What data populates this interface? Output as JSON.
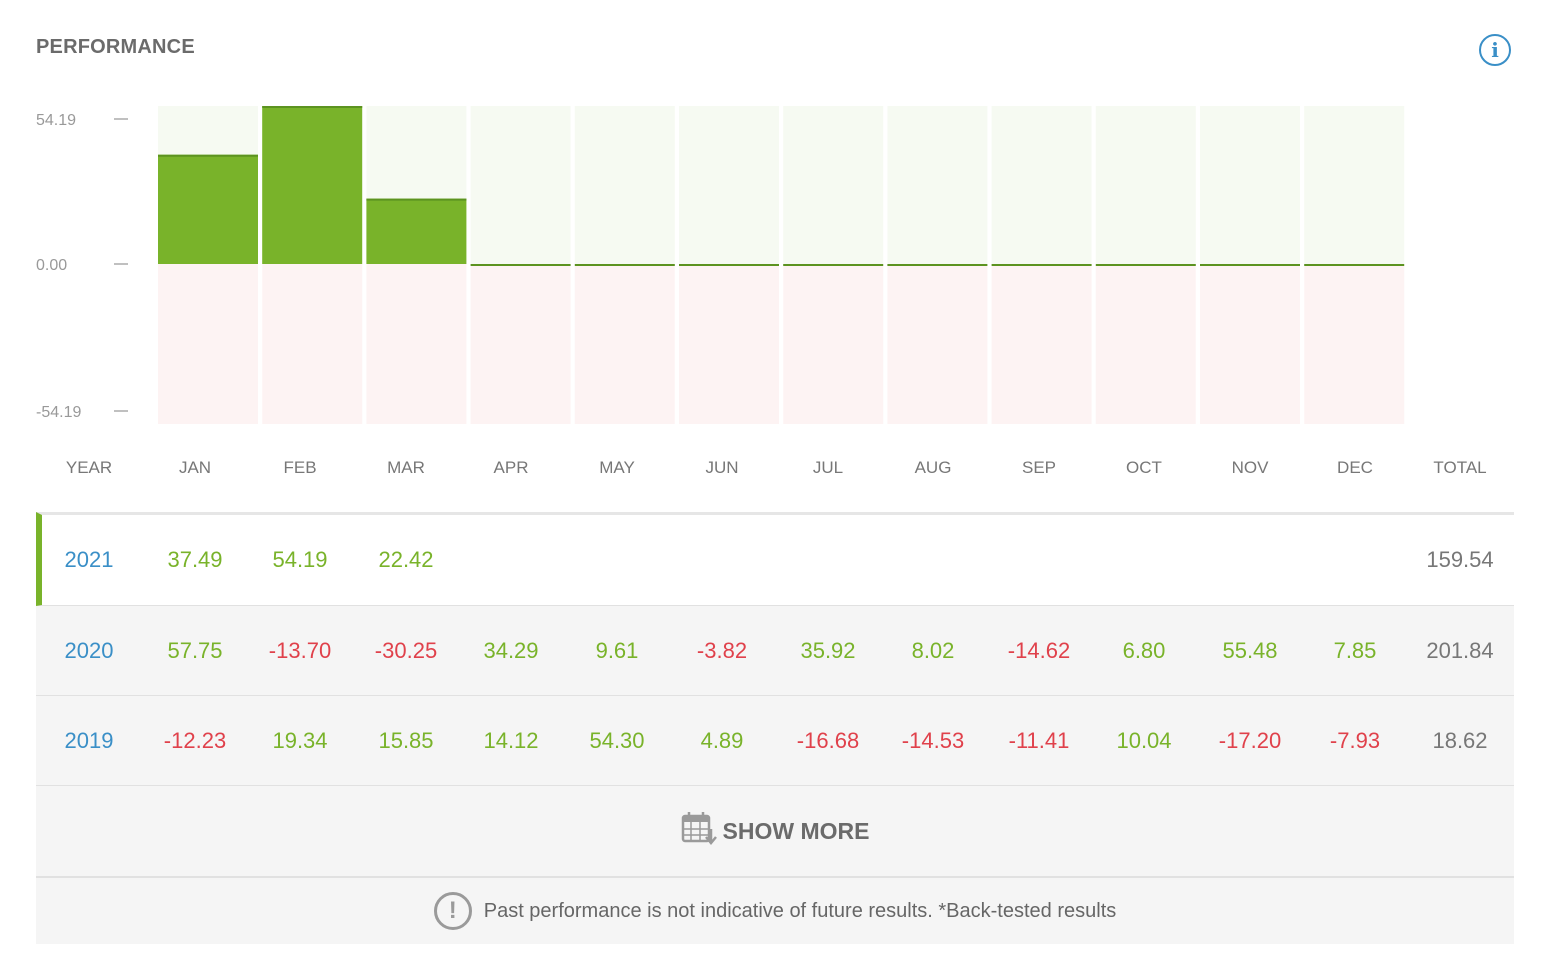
{
  "header": {
    "title": "PERFORMANCE",
    "info_icon": "info-icon",
    "info_glyph": "i"
  },
  "colors": {
    "positive": "#79b32a",
    "negative": "#e0414b",
    "year_link": "#3a8fc7",
    "positive_zone": "#f6faf2",
    "negative_zone": "#fdf3f3",
    "bar_border": "#5c9320"
  },
  "chart_data": {
    "type": "bar",
    "categories": [
      "JAN",
      "FEB",
      "MAR",
      "APR",
      "MAY",
      "JUN",
      "JUL",
      "AUG",
      "SEP",
      "OCT",
      "NOV",
      "DEC"
    ],
    "values": [
      37.49,
      54.19,
      22.42,
      0,
      0,
      0,
      0,
      0,
      0,
      0,
      0,
      0
    ],
    "ylim": [
      -54.19,
      54.19
    ],
    "y_ticks": [
      "54.19",
      "0.00",
      "-54.19"
    ],
    "grid": false
  },
  "table": {
    "columns": [
      "YEAR",
      "JAN",
      "FEB",
      "MAR",
      "APR",
      "MAY",
      "JUN",
      "JUL",
      "AUG",
      "SEP",
      "OCT",
      "NOV",
      "DEC",
      "TOTAL"
    ],
    "rows": [
      {
        "year": "2021",
        "months": [
          "37.49",
          "54.19",
          "22.42",
          "",
          "",
          "",
          "",
          "",
          "",
          "",
          "",
          ""
        ],
        "total": "159.54"
      },
      {
        "year": "2020",
        "months": [
          "57.75",
          "-13.70",
          "-30.25",
          "34.29",
          "9.61",
          "-3.82",
          "35.92",
          "8.02",
          "-14.62",
          "6.80",
          "55.48",
          "7.85"
        ],
        "total": "201.84"
      },
      {
        "year": "2019",
        "months": [
          "-12.23",
          "19.34",
          "15.85",
          "14.12",
          "54.30",
          "4.89",
          "-16.68",
          "-14.53",
          "-11.41",
          "10.04",
          "-17.20",
          "-7.93"
        ],
        "total": "18.62"
      }
    ]
  },
  "show_more": {
    "label": "SHOW MORE",
    "icon": "calendar-icon"
  },
  "disclaimer": {
    "text": "Past performance is not indicative of future results. *Back-tested results",
    "icon": "warning-icon",
    "glyph": "!"
  }
}
